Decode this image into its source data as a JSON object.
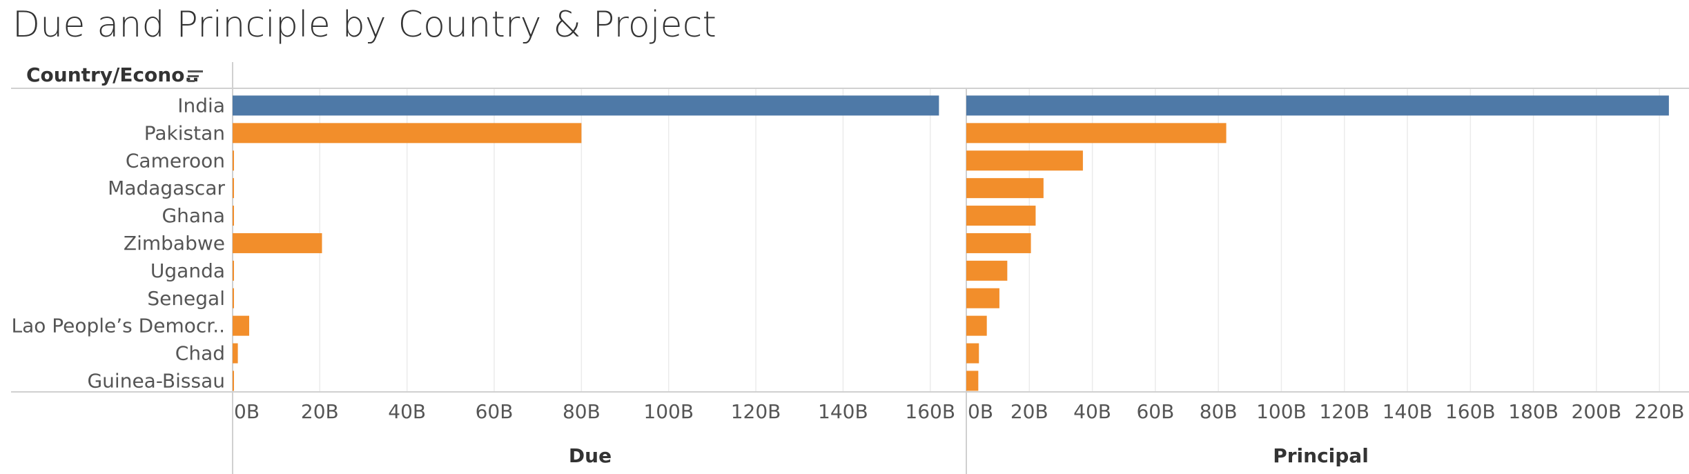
{
  "title": "Due and Principle by Country & Project",
  "row_header": "Country/Econo..",
  "colors": {
    "highlight": "#4e79a7",
    "default": "#f28e2b",
    "grid": "#ebebeb",
    "axis": "#d0d0d0",
    "text": "#555555"
  },
  "chart_data": {
    "type": "bar",
    "orientation": "horizontal",
    "categories": [
      "India",
      "Pakistan",
      "Cameroon",
      "Madagascar",
      "Ghana",
      "Zimbabwe",
      "Uganda",
      "Senegal",
      "Lao People’s Democr..",
      "Chad",
      "Guinea-Bissau"
    ],
    "highlighted": [
      "India"
    ],
    "panels": [
      {
        "name": "Due",
        "xlabel": "Due",
        "xlim": [
          0,
          164
        ],
        "unit": "B",
        "ticks": [
          0,
          20,
          40,
          60,
          80,
          100,
          120,
          140,
          160
        ],
        "tick_labels": [
          "0B",
          "20B",
          "40B",
          "60B",
          "80B",
          "100B",
          "120B",
          "140B",
          "160B"
        ],
        "values": [
          162,
          80,
          0.3,
          0.3,
          0.3,
          20.5,
          0.3,
          0.3,
          3.8,
          1.2,
          0.3
        ]
      },
      {
        "name": "Principal",
        "xlabel": "Principal",
        "xlim": [
          0,
          225
        ],
        "unit": "B",
        "ticks": [
          0,
          20,
          40,
          60,
          80,
          100,
          120,
          140,
          160,
          180,
          200,
          220
        ],
        "tick_labels": [
          "0B",
          "20B",
          "40B",
          "60B",
          "80B",
          "100B",
          "120B",
          "140B",
          "160B",
          "180B",
          "200B",
          "220B"
        ],
        "values": [
          223,
          82.5,
          37,
          24.5,
          22,
          20.5,
          13,
          10.5,
          6.5,
          4,
          3.8
        ]
      }
    ]
  }
}
